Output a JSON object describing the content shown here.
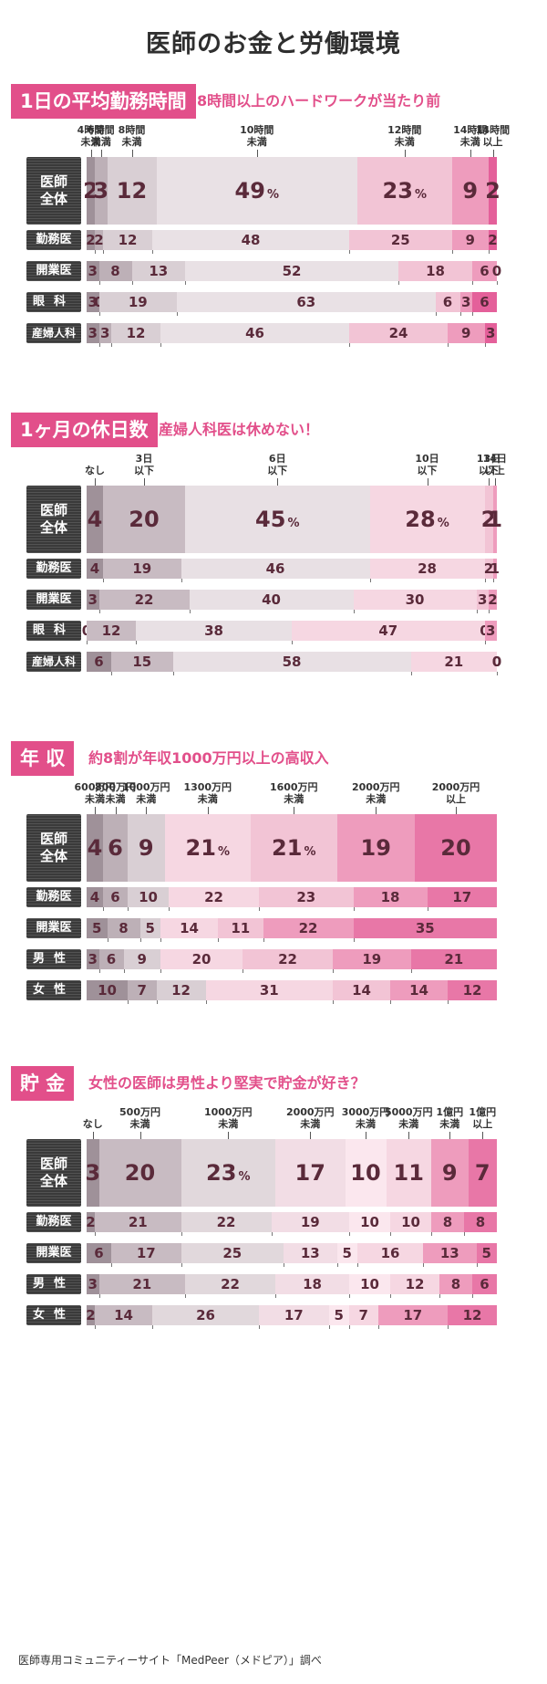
{
  "title": "医師のお金と労働環境",
  "credit": "医師専用コミュニティーサイト「MedPeer（メドピア）」調べ",
  "colors": {
    "accent": "#e24f8a",
    "section1": [
      "#9f9199",
      "#bdb0b7",
      "#d9cfd4",
      "#e9e1e5",
      "#f2c4d5",
      "#ee9cbd",
      "#e4609a"
    ],
    "section2": [
      "#9f9199",
      "#c8bbc2",
      "#e8e0e4",
      "#f6d7e2",
      "#f2c4d5",
      "#ee9cbd"
    ],
    "section3": [
      "#9f9199",
      "#bdb0b7",
      "#d9cfd4",
      "#f6d7e2",
      "#f2c4d5",
      "#ee9cbd",
      "#e877a7"
    ],
    "section4": [
      "#9f9199",
      "#c8bbc2",
      "#e1d8dc",
      "#f2dde5",
      "#fbe7ee",
      "#f6d7e2",
      "#ee9cbd",
      "#e877a7"
    ]
  },
  "chart_data": [
    {
      "type": "bar",
      "title": "1日の平均勤務時間",
      "subtitle": "8時間以上のハードワークが当たり前",
      "categories": [
        [
          "4時間",
          "未満"
        ],
        [
          "6時間",
          "未満"
        ],
        [
          "8時間",
          "未満"
        ],
        [
          "10時間",
          "未満"
        ],
        [
          "12時間",
          "未満"
        ],
        [
          "14時間",
          "未満"
        ],
        [
          "14時間",
          "以上"
        ]
      ],
      "series": [
        {
          "name": "医師全体",
          "values": [
            2,
            3,
            12,
            49,
            23,
            9,
            2
          ]
        },
        {
          "name": "勤務医",
          "values": [
            2,
            2,
            12,
            48,
            25,
            9,
            2
          ]
        },
        {
          "name": "開業医",
          "values": [
            3,
            8,
            13,
            52,
            18,
            6,
            0
          ]
        },
        {
          "name": "眼科",
          "values": [
            3,
            0,
            19,
            63,
            6,
            3,
            6
          ]
        },
        {
          "name": "産婦人科",
          "values": [
            3,
            3,
            12,
            46,
            24,
            9,
            3
          ]
        }
      ],
      "unit": "%"
    },
    {
      "type": "bar",
      "title": "1ヶ月の休日数",
      "subtitle": "産婦人科医は休めない！",
      "categories": [
        [
          "なし"
        ],
        [
          "3日",
          "以下"
        ],
        [
          "6日",
          "以下"
        ],
        [
          "10日",
          "以下"
        ],
        [
          "13日",
          "以下"
        ],
        [
          "14日",
          "以上"
        ]
      ],
      "series": [
        {
          "name": "医師全体",
          "values": [
            4,
            20,
            45,
            28,
            2,
            1
          ]
        },
        {
          "name": "勤務医",
          "values": [
            4,
            19,
            46,
            28,
            2,
            1
          ]
        },
        {
          "name": "開業医",
          "values": [
            3,
            22,
            40,
            30,
            3,
            2
          ]
        },
        {
          "name": "眼科",
          "values": [
            0,
            12,
            38,
            47,
            0,
            3
          ]
        },
        {
          "name": "産婦人科",
          "values": [
            6,
            15,
            58,
            21,
            0,
            0
          ]
        }
      ],
      "unit": "%"
    },
    {
      "type": "bar",
      "title": "年 収",
      "subtitle": "約8割が年収1000万円以上の高収入",
      "categories": [
        [
          "600万円",
          "未満"
        ],
        [
          "800万円",
          "未満"
        ],
        [
          "1000万円",
          "未満"
        ],
        [
          "1300万円",
          "未満"
        ],
        [
          "1600万円",
          "未満"
        ],
        [
          "2000万円",
          "未満"
        ],
        [
          "2000万円",
          "以上"
        ]
      ],
      "series": [
        {
          "name": "医師全体",
          "values": [
            4,
            6,
            9,
            21,
            21,
            19,
            20
          ]
        },
        {
          "name": "勤務医",
          "values": [
            4,
            6,
            10,
            22,
            23,
            18,
            17
          ]
        },
        {
          "name": "開業医",
          "values": [
            5,
            8,
            5,
            14,
            11,
            22,
            35
          ]
        },
        {
          "name": "男性",
          "values": [
            3,
            6,
            9,
            20,
            22,
            19,
            21
          ]
        },
        {
          "name": "女性",
          "values": [
            10,
            7,
            12,
            31,
            14,
            14,
            12
          ]
        }
      ],
      "unit": "%"
    },
    {
      "type": "bar",
      "title": "貯 金",
      "subtitle": "女性の医師は男性より堅実で貯金が好き？",
      "categories": [
        [
          "なし"
        ],
        [
          "500万円",
          "未満"
        ],
        [
          "1000万円",
          "未満"
        ],
        [
          "2000万円",
          "未満"
        ],
        [
          "3000万円",
          "未満"
        ],
        [
          "5000万円",
          "未満"
        ],
        [
          "1億円",
          "未満"
        ],
        [
          "1億円",
          "以上"
        ]
      ],
      "series": [
        {
          "name": "医師全体",
          "values": [
            3,
            20,
            23,
            17,
            10,
            11,
            9,
            7
          ]
        },
        {
          "name": "勤務医",
          "values": [
            2,
            21,
            22,
            19,
            10,
            10,
            8,
            8
          ]
        },
        {
          "name": "開業医",
          "values": [
            6,
            17,
            25,
            13,
            5,
            16,
            13,
            5
          ]
        },
        {
          "name": "男性",
          "values": [
            3,
            21,
            22,
            18,
            10,
            12,
            8,
            6
          ]
        },
        {
          "name": "女性",
          "values": [
            2,
            14,
            26,
            17,
            5,
            7,
            17,
            12
          ]
        }
      ],
      "unit": "%"
    }
  ]
}
